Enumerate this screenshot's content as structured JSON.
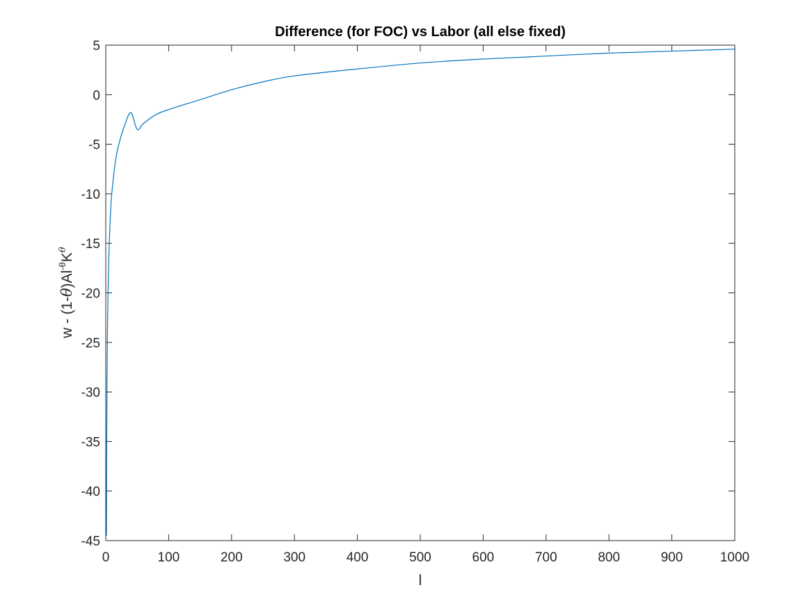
{
  "chart_data": {
    "type": "line",
    "title": "Difference (for FOC) vs Labor (all else fixed)",
    "xlabel": "l",
    "ylabel": {
      "prefix": "w - (1-",
      "theta": "θ",
      "middle": ")Al",
      "exp1": "-θ",
      "k": "K",
      "exp2": "θ"
    },
    "xlim": [
      0,
      1000
    ],
    "ylim": [
      -45,
      5
    ],
    "xticks": [
      0,
      100,
      200,
      300,
      400,
      500,
      600,
      700,
      800,
      900,
      1000
    ],
    "yticks": [
      5,
      0,
      -5,
      -10,
      -15,
      -20,
      -25,
      -30,
      -35,
      -40,
      -45
    ],
    "grid": false,
    "series_color": "#0072BD",
    "series": [
      {
        "x": [
          1,
          2,
          3,
          5,
          8,
          10,
          15,
          20,
          30,
          40,
          50,
          60,
          80,
          100,
          150,
          200,
          250,
          300,
          400,
          500,
          600,
          700,
          800,
          900,
          1000
        ],
        "y": [
          -44.5,
          -29.0,
          -22.5,
          -16.1,
          -11.4,
          -9.7,
          -6.9,
          -5.2,
          -3.1,
          -1.8,
          -3.5,
          -2.9,
          -2.0,
          -1.5,
          -0.5,
          0.5,
          1.3,
          1.9,
          2.6,
          3.2,
          3.6,
          3.9,
          4.2,
          4.4,
          4.6
        ]
      }
    ]
  }
}
